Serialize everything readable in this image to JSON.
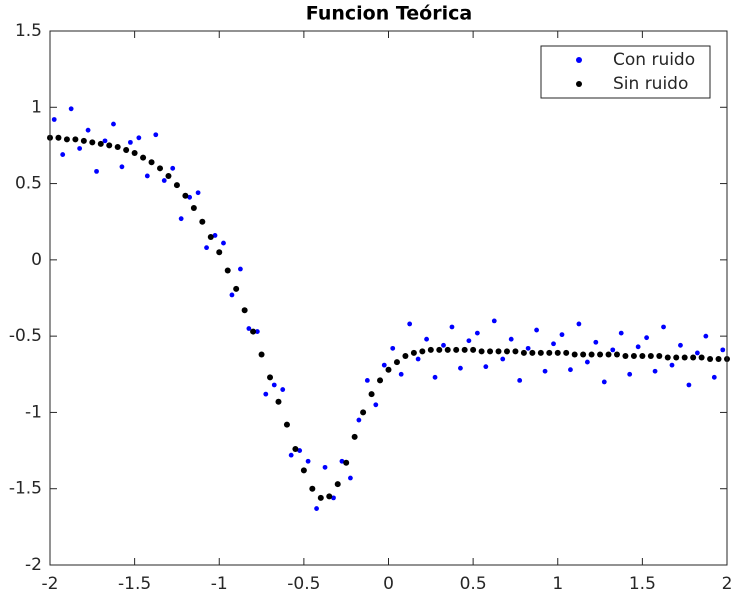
{
  "chart_data": {
    "type": "scatter",
    "title": "Funcion Teórica",
    "xlim": [
      -2,
      2
    ],
    "ylim": [
      -2,
      1.5
    ],
    "xticks": [
      -2,
      -1.5,
      -1,
      -0.5,
      0,
      0.5,
      1,
      1.5,
      2
    ],
    "yticks": [
      -2,
      -1.5,
      -1,
      -0.5,
      0,
      0.5,
      1,
      1.5
    ],
    "legend": "northeast",
    "series": [
      {
        "name": "Con ruido",
        "color": "#0000ff",
        "x": [
          -1.975,
          -1.925,
          -1.875,
          -1.825,
          -1.775,
          -1.725,
          -1.675,
          -1.625,
          -1.575,
          -1.525,
          -1.475,
          -1.425,
          -1.375,
          -1.325,
          -1.275,
          -1.225,
          -1.175,
          -1.125,
          -1.075,
          -1.025,
          -0.975,
          -0.925,
          -0.875,
          -0.825,
          -0.775,
          -0.725,
          -0.675,
          -0.625,
          -0.575,
          -0.525,
          -0.475,
          -0.425,
          -0.375,
          -0.325,
          -0.275,
          -0.225,
          -0.175,
          -0.125,
          -0.075,
          -0.025,
          0.025,
          0.075,
          0.125,
          0.175,
          0.225,
          0.275,
          0.325,
          0.375,
          0.425,
          0.475,
          0.525,
          0.575,
          0.625,
          0.675,
          0.725,
          0.775,
          0.825,
          0.875,
          0.925,
          0.975,
          1.025,
          1.075,
          1.125,
          1.175,
          1.225,
          1.275,
          1.325,
          1.375,
          1.425,
          1.475,
          1.525,
          1.575,
          1.625,
          1.675,
          1.725,
          1.775,
          1.825,
          1.875,
          1.925,
          1.975
        ],
        "values": [
          0.92,
          0.69,
          0.99,
          0.73,
          0.85,
          0.58,
          0.78,
          0.89,
          0.61,
          0.77,
          0.8,
          0.55,
          0.82,
          0.52,
          0.6,
          0.27,
          0.41,
          0.44,
          0.08,
          0.16,
          0.11,
          -0.23,
          -0.06,
          -0.45,
          -0.47,
          -0.88,
          -0.82,
          -0.85,
          -1.28,
          -1.25,
          -1.32,
          -1.63,
          -1.36,
          -1.56,
          -1.32,
          -1.43,
          -1.05,
          -0.79,
          -0.95,
          -0.69,
          -0.58,
          -0.75,
          -0.42,
          -0.65,
          -0.52,
          -0.77,
          -0.56,
          -0.44,
          -0.71,
          -0.53,
          -0.48,
          -0.7,
          -0.4,
          -0.65,
          -0.52,
          -0.79,
          -0.58,
          -0.46,
          -0.73,
          -0.55,
          -0.49,
          -0.72,
          -0.42,
          -0.67,
          -0.54,
          -0.8,
          -0.59,
          -0.48,
          -0.75,
          -0.57,
          -0.51,
          -0.73,
          -0.44,
          -0.69,
          -0.56,
          -0.82,
          -0.61,
          -0.5,
          -0.77,
          -0.59
        ]
      },
      {
        "name": "Sin ruido",
        "color": "#000000",
        "x": [
          -2,
          -1.95,
          -1.9,
          -1.85,
          -1.8,
          -1.75,
          -1.7,
          -1.65,
          -1.6,
          -1.55,
          -1.5,
          -1.45,
          -1.4,
          -1.35,
          -1.3,
          -1.25,
          -1.2,
          -1.15,
          -1.1,
          -1.05,
          -1,
          -0.95,
          -0.9,
          -0.85,
          -0.8,
          -0.75,
          -0.7,
          -0.65,
          -0.6,
          -0.55,
          -0.5,
          -0.45,
          -0.4,
          -0.35,
          -0.3,
          -0.25,
          -0.2,
          -0.15,
          -0.1,
          -0.05,
          0,
          0.05,
          0.1,
          0.15,
          0.2,
          0.25,
          0.3,
          0.35,
          0.4,
          0.45,
          0.5,
          0.55,
          0.6,
          0.65,
          0.7,
          0.75,
          0.8,
          0.85,
          0.9,
          0.95,
          1,
          1.05,
          1.1,
          1.15,
          1.2,
          1.25,
          1.3,
          1.35,
          1.4,
          1.45,
          1.5,
          1.55,
          1.6,
          1.65,
          1.7,
          1.75,
          1.8,
          1.85,
          1.9,
          1.95,
          2
        ],
        "values": [
          0.8,
          0.8,
          0.79,
          0.79,
          0.78,
          0.77,
          0.76,
          0.75,
          0.74,
          0.72,
          0.7,
          0.67,
          0.64,
          0.6,
          0.55,
          0.49,
          0.42,
          0.34,
          0.25,
          0.15,
          0.05,
          -0.07,
          -0.19,
          -0.33,
          -0.47,
          -0.62,
          -0.77,
          -0.93,
          -1.08,
          -1.24,
          -1.38,
          -1.5,
          -1.56,
          -1.55,
          -1.47,
          -1.33,
          -1.16,
          -1.0,
          -0.88,
          -0.79,
          -0.72,
          -0.67,
          -0.63,
          -0.61,
          -0.6,
          -0.59,
          -0.59,
          -0.59,
          -0.59,
          -0.59,
          -0.59,
          -0.6,
          -0.6,
          -0.6,
          -0.6,
          -0.6,
          -0.61,
          -0.61,
          -0.61,
          -0.61,
          -0.61,
          -0.61,
          -0.62,
          -0.62,
          -0.62,
          -0.62,
          -0.62,
          -0.62,
          -0.63,
          -0.63,
          -0.63,
          -0.63,
          -0.63,
          -0.64,
          -0.64,
          -0.64,
          -0.64,
          -0.64,
          -0.65,
          -0.65,
          -0.65
        ]
      }
    ]
  }
}
